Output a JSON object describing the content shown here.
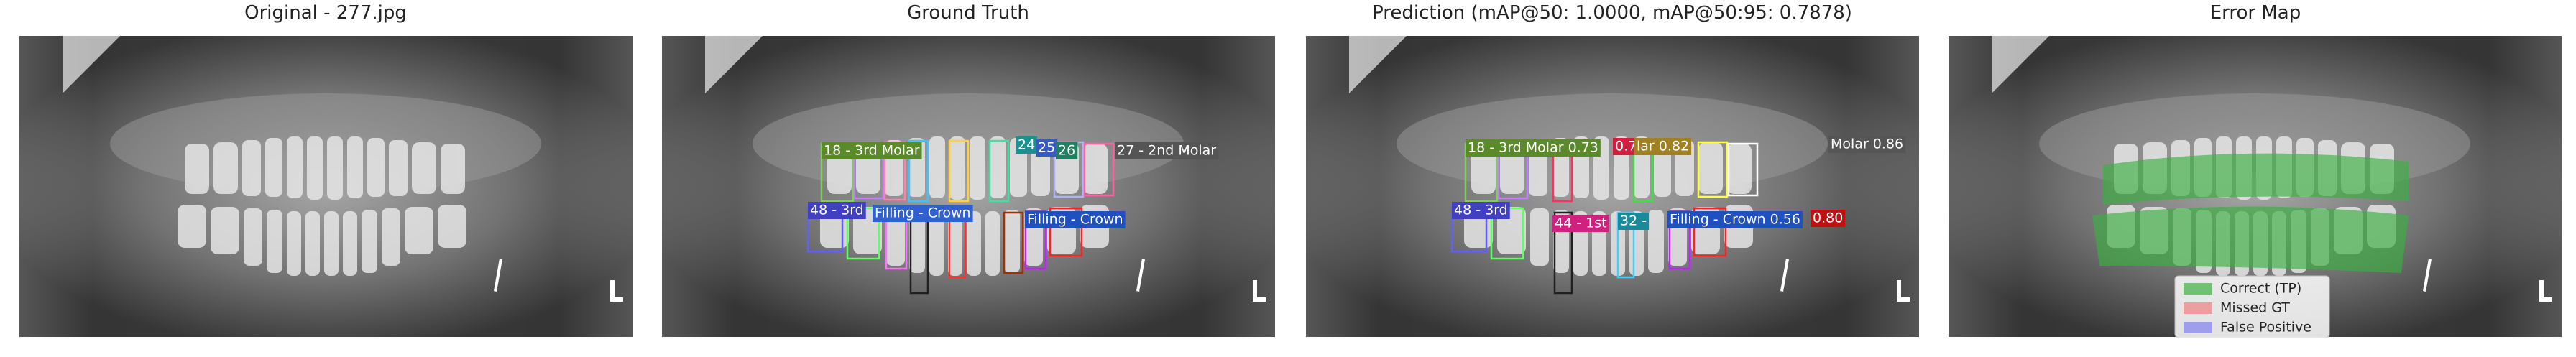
{
  "panels": [
    {
      "title": "Original - 277.jpg"
    },
    {
      "title": "Ground Truth",
      "labels": [
        "18 - 3rd Molar",
        "24",
        "25",
        "26",
        "27 - 2nd Molar",
        "48 - 3rd",
        "Filling - Crown",
        "Filling - Crown"
      ]
    },
    {
      "title": "Prediction (mAP@50: 1.0000, mAP@50:95: 0.7878)",
      "labels": [
        "18 - 3rd Molar 0.73",
        "0.79",
        "lar 0.82",
        "Molar 0.86",
        "48 - 3rd",
        "44 - 1st",
        "32 -",
        "Filling - Crown 0.56",
        "0.80"
      ]
    },
    {
      "title": "Error Map",
      "legend": [
        "Correct (TP)",
        "Missed GT",
        "False Positive"
      ]
    }
  ]
}
